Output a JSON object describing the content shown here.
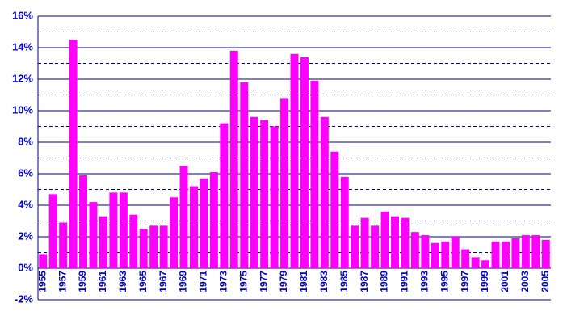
{
  "chart_data": {
    "type": "bar",
    "categories": [
      "1955",
      null,
      "1957",
      null,
      "1959",
      null,
      "1961",
      null,
      "1963",
      null,
      "1965",
      null,
      "1967",
      null,
      "1969",
      null,
      "1971",
      null,
      "1973",
      null,
      "1975",
      null,
      "1977",
      null,
      "1979",
      null,
      "1981",
      null,
      "1983",
      null,
      "1985",
      null,
      "1987",
      null,
      "1989",
      null,
      "1991",
      null,
      "1993",
      null,
      "1995",
      null,
      "1997",
      null,
      "1999",
      null,
      "2001",
      null,
      "2003",
      null,
      "2005"
    ],
    "values": [
      0.9,
      4.7,
      2.9,
      14.5,
      5.9,
      4.2,
      3.3,
      4.8,
      4.8,
      3.4,
      2.5,
      2.7,
      2.7,
      4.5,
      6.5,
      5.2,
      5.7,
      6.1,
      9.2,
      13.8,
      11.8,
      9.6,
      9.4,
      9.0,
      10.8,
      13.6,
      13.4,
      11.9,
      9.6,
      7.4,
      5.8,
      2.7,
      3.2,
      2.7,
      3.6,
      3.3,
      3.2,
      2.3,
      2.1,
      1.6,
      1.7,
      2.0,
      1.2,
      0.7,
      0.5,
      1.7,
      1.7,
      1.9,
      2.1,
      2.1,
      1.8
    ],
    "color": "#ff00ff",
    "ylim": [
      -2,
      16
    ],
    "yticks": [
      {
        "value": -2,
        "label": "-2%"
      },
      {
        "value": 0,
        "label": "0%"
      },
      {
        "value": 2,
        "label": "2%"
      },
      {
        "value": 4,
        "label": "4%"
      },
      {
        "value": 6,
        "label": "6%"
      },
      {
        "value": 8,
        "label": "8%"
      },
      {
        "value": 10,
        "label": "10%"
      },
      {
        "value": 12,
        "label": "12%"
      },
      {
        "value": 14,
        "label": "14%"
      },
      {
        "value": 16,
        "label": "16%"
      }
    ],
    "minor_yticks": [
      1,
      3,
      5,
      7,
      9,
      11,
      13,
      15
    ],
    "grid": true
  }
}
